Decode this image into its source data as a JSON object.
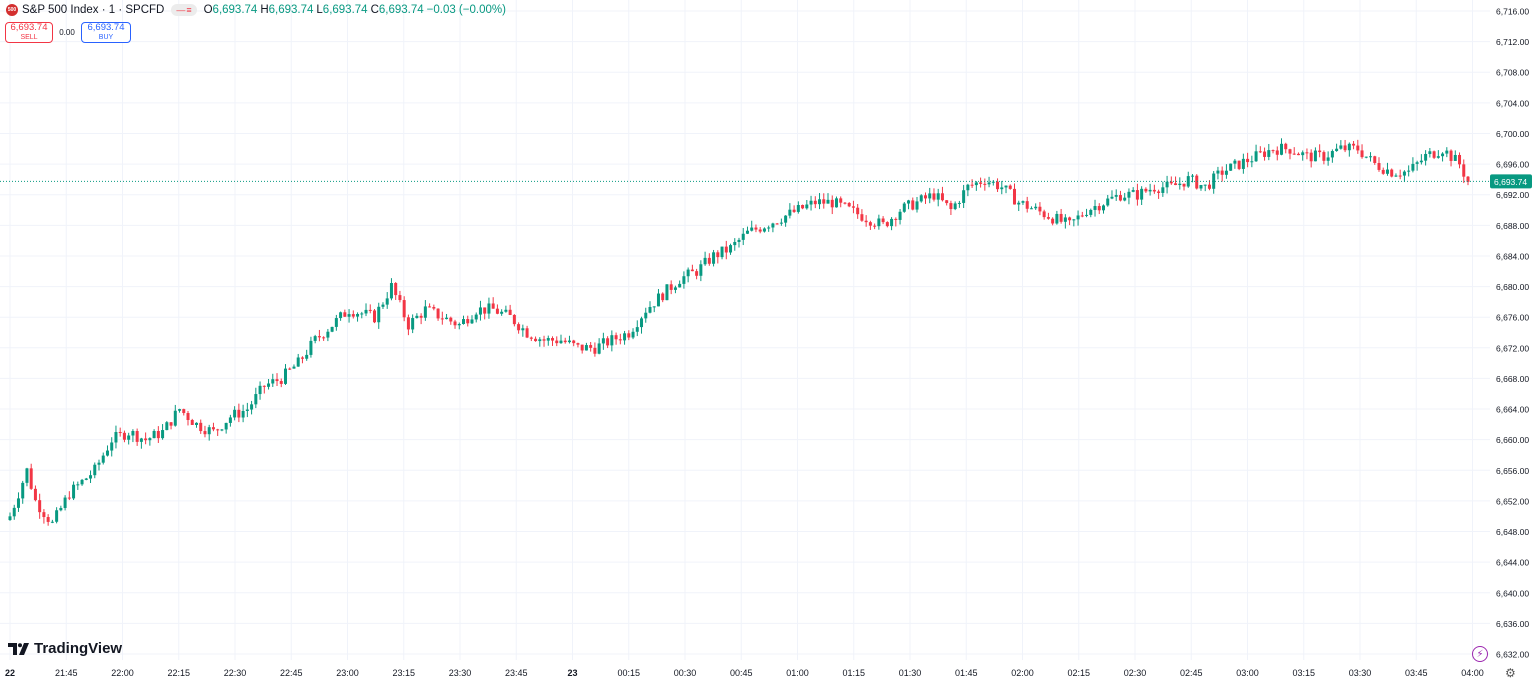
{
  "header": {
    "symbol_logo": "500",
    "title": "S&P 500 Index · 1 · SPCFD",
    "ohlc": [
      {
        "k": "O",
        "v": "6,693.74"
      },
      {
        "k": "H",
        "v": "6,693.74"
      },
      {
        "k": "L",
        "v": "6,693.74"
      },
      {
        "k": "C",
        "v": "6,693.74"
      },
      {
        "k": "",
        "v": "−0.03 (−0.00%)"
      }
    ]
  },
  "trade": {
    "sell_price": "6,693.74",
    "sell_label": "SELL",
    "spread": "0.00",
    "buy_price": "6,693.74",
    "buy_label": "BUY"
  },
  "branding": {
    "name": "TradingView"
  },
  "price_axis": {
    "labels": [
      "6,716.00",
      "6,712.00",
      "6,708.00",
      "6,704.00",
      "6,700.00",
      "6,696.00",
      "6,692.00",
      "6,688.00",
      "6,684.00",
      "6,680.00",
      "6,676.00",
      "6,672.00",
      "6,668.00",
      "6,664.00",
      "6,660.00",
      "6,656.00",
      "6,652.00",
      "6,648.00",
      "6,644.00",
      "6,640.00",
      "6,636.00",
      "6,632.00"
    ],
    "current_price": "6,693.74"
  },
  "time_axis": {
    "labels": [
      "22",
      "21:45",
      "22:00",
      "22:15",
      "22:30",
      "22:45",
      "23:00",
      "23:15",
      "23:30",
      "23:45",
      "23",
      "00:15",
      "00:30",
      "00:45",
      "01:00",
      "01:15",
      "01:30",
      "01:45",
      "02:00",
      "02:15",
      "02:30",
      "02:45",
      "03:00",
      "03:15",
      "03:30",
      "03:45",
      "04:00"
    ]
  },
  "colors": {
    "up": "#089981",
    "down": "#f23645",
    "grid": "#f0f3fa",
    "price_line": "#089981"
  },
  "chart_data": {
    "type": "candlestick",
    "y_range": [
      6631,
      6717
    ],
    "anchors": [
      [
        0,
        6650
      ],
      [
        4,
        6656
      ],
      [
        6,
        6652
      ],
      [
        10,
        6649
      ],
      [
        14,
        6653
      ],
      [
        20,
        6656
      ],
      [
        24,
        6660
      ],
      [
        28,
        6661
      ],
      [
        32,
        6660
      ],
      [
        36,
        6661
      ],
      [
        40,
        6664
      ],
      [
        44,
        6662
      ],
      [
        48,
        6661
      ],
      [
        52,
        6663
      ],
      [
        56,
        6664
      ],
      [
        60,
        6667
      ],
      [
        64,
        6668
      ],
      [
        68,
        6670
      ],
      [
        72,
        6673
      ],
      [
        76,
        6675
      ],
      [
        80,
        6677
      ],
      [
        86,
        6676
      ],
      [
        90,
        6680
      ],
      [
        94,
        6675
      ],
      [
        98,
        6677
      ],
      [
        102,
        6676
      ],
      [
        106,
        6675
      ],
      [
        110,
        6677
      ],
      [
        114,
        6677
      ],
      [
        118,
        6676
      ],
      [
        122,
        6674
      ],
      [
        126,
        6673
      ],
      [
        130,
        6673
      ],
      [
        134,
        6672
      ],
      [
        138,
        6672
      ],
      [
        142,
        6673
      ],
      [
        146,
        6674
      ],
      [
        150,
        6677
      ],
      [
        154,
        6679
      ],
      [
        158,
        6681
      ],
      [
        162,
        6682
      ],
      [
        166,
        6684
      ],
      [
        170,
        6685
      ],
      [
        174,
        6687
      ],
      [
        178,
        6688
      ],
      [
        182,
        6689
      ],
      [
        186,
        6690
      ],
      [
        190,
        6691
      ],
      [
        194,
        6691
      ],
      [
        198,
        6690
      ],
      [
        202,
        6689
      ],
      [
        206,
        6688
      ],
      [
        210,
        6690
      ],
      [
        214,
        6691
      ],
      [
        218,
        6692
      ],
      [
        222,
        6690
      ],
      [
        226,
        6693
      ],
      [
        230,
        6694
      ],
      [
        234,
        6693
      ],
      [
        238,
        6691
      ],
      [
        242,
        6690
      ],
      [
        246,
        6689
      ],
      [
        250,
        6688
      ],
      [
        254,
        6690
      ],
      [
        258,
        6691
      ],
      [
        262,
        6692
      ],
      [
        266,
        6692
      ],
      [
        270,
        6693
      ],
      [
        274,
        6693
      ],
      [
        278,
        6694
      ],
      [
        282,
        6693
      ],
      [
        286,
        6695
      ],
      [
        290,
        6696
      ],
      [
        294,
        6697
      ],
      [
        298,
        6698
      ],
      [
        302,
        6698
      ],
      [
        306,
        6697
      ],
      [
        310,
        6697
      ],
      [
        314,
        6698
      ],
      [
        318,
        6698
      ],
      [
        322,
        6696
      ],
      [
        326,
        6695
      ],
      [
        330,
        6695
      ],
      [
        334,
        6697
      ],
      [
        338,
        6698
      ],
      [
        342,
        6696
      ],
      [
        344,
        6693.7
      ]
    ]
  }
}
